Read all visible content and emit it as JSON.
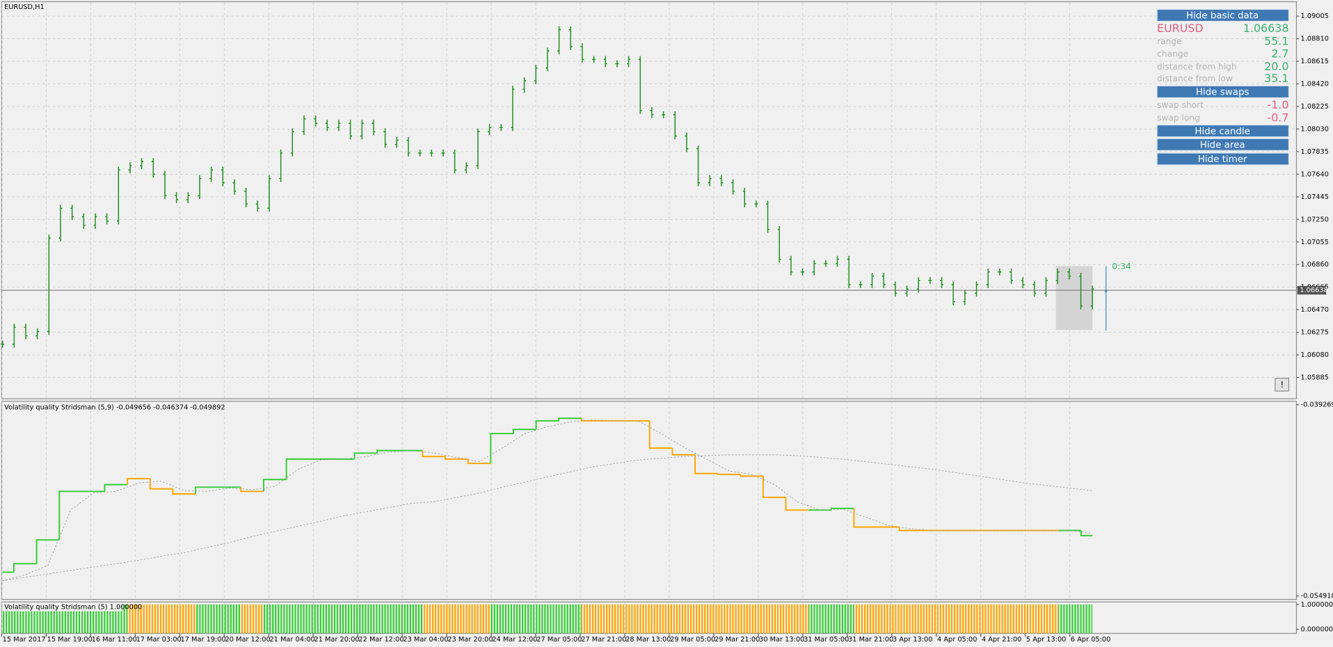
{
  "chart_data": [
    {
      "type": "ohlc",
      "title": "EURUSD,H1",
      "color": "#1e8c1e",
      "grid": true,
      "ylim": [
        1.05694,
        1.09122
      ],
      "yticks": [
        1.05885,
        {
          "value": 1.0608,
          "label": "1.06080"
        },
        1.06275,
        {
          "value": 1.0647,
          "label": "1.06470"
        },
        1.06665,
        {
          "value": 1.0686,
          "label": "1.06860"
        },
        1.07055,
        {
          "value": 1.0725,
          "label": "1.07250"
        },
        1.07445,
        {
          "value": 1.0764,
          "label": "1.07640"
        },
        1.07835,
        {
          "value": 1.0803,
          "label": "1.08030"
        },
        1.08225,
        {
          "value": 1.0842,
          "label": "1.08420"
        },
        1.08615,
        {
          "value": 1.0881,
          "label": "1.08810"
        },
        1.09005
      ],
      "time_labels": [
        "15 Mar 2017",
        "15 Mar 19:00",
        "16 Mar 11:00",
        "17 Mar 03:00",
        "17 Mar 19:00",
        "20 Mar 12:00",
        "21 Mar 04:00",
        "21 Mar 20:00",
        "22 Mar 12:00",
        "23 Mar 04:00",
        "23 Mar 20:00",
        "24 Mar 12:00",
        "27 Mar 05:00",
        "27 Mar 21:00",
        "28 Mar 13:00",
        "29 Mar 05:00",
        "29 Mar 21:00",
        "30 Mar 13:00",
        "31 Mar 05:00",
        "31 Mar 21:00",
        "3 Apr 13:00",
        "4 Apr 05:00",
        "4 Apr 21:00",
        "5 Apr 13:00",
        "6 Apr 05:00"
      ],
      "values": [
        1.06172,
        1.06319,
        1.06245,
        1.06282,
        1.07089,
        1.07346,
        1.07273,
        1.07199,
        1.07273,
        1.07236,
        1.07676,
        1.07713,
        1.0775,
        1.0764,
        1.07456,
        1.0742,
        1.07456,
        1.07603,
        1.07676,
        1.07566,
        1.07493,
        1.07383,
        1.07346,
        1.07603,
        1.07823,
        1.08007,
        1.08117,
        1.0808,
        1.08043,
        1.0808,
        1.0797,
        1.0808,
        1.08007,
        1.07897,
        1.07933,
        1.07823,
        1.07823,
        1.07823,
        1.07823,
        1.07676,
        1.07713,
        1.08007,
        1.08043,
        1.08043,
        1.08374,
        1.08447,
        1.08557,
        1.08704,
        1.08888,
        1.08741,
        1.08631,
        1.08631,
        1.08594,
        1.08594,
        1.08631,
        1.0819,
        1.08154,
        1.08154,
        1.0797,
        1.0786,
        1.07566,
        1.07603,
        1.07566,
        1.07493,
        1.07383,
        1.07383,
        1.07163,
        1.06906,
        1.06796,
        1.06796,
        1.06869,
        1.06869,
        1.06906,
        1.06686,
        1.06686,
        1.06759,
        1.06686,
        1.06612,
        1.06649,
        1.06722,
        1.06722,
        1.06686,
        1.06539,
        1.06612,
        1.06686,
        1.06796,
        1.06796,
        1.06722,
        1.06686,
        1.06612,
        1.06722,
        1.06796,
        1.06759,
        1.06502,
        1.06649
      ],
      "current_price": {
        "value": 1.06638,
        "label": "1.06638"
      },
      "timer": "0:34"
    },
    {
      "type": "line",
      "title": "Volatility quality Stridsman (5,9) -0.049656 -0.046374 -0.049892",
      "ylim": [
        -0.055196,
        -0.038991
      ],
      "yticks": [
        -0.039269,
        -0.054918
      ],
      "series": [
        {
          "color": "#ffa500",
          "colors": [
            "#32cd32",
            "#32cd32",
            "#32cd32",
            "#32cd32",
            "#32cd32",
            "#32cd32",
            "#ffa500",
            "#ffa500",
            "#ffa500",
            "#32cd32",
            "#32cd32",
            "#ffa500",
            "#32cd32",
            "#32cd32",
            "#32cd32",
            "#32cd32",
            "#32cd32",
            "#32cd32",
            "#32cd32",
            "#ffa500",
            "#ffa500",
            "#ffa500",
            "#32cd32",
            "#32cd32",
            "#32cd32",
            "#32cd32",
            "#ffa500",
            "#ffa500",
            "#ffa500",
            "#ffa500",
            "#ffa500",
            "#ffa500",
            "#ffa500",
            "#ffa500",
            "#ffa500",
            "#ffa500",
            "#32cd32",
            "#32cd32",
            "#ffa500",
            "#ffa500",
            "#ffa500",
            "#ffa500",
            "#ffa500",
            "#ffa500",
            "#ffa500",
            "#ffa500",
            "#ffa500",
            "#32cd32",
            "#32cd32"
          ],
          "values": [
            -0.05297,
            -0.05228,
            -0.05033,
            -0.04636,
            -0.04636,
            -0.04581,
            -0.04532,
            -0.04615,
            -0.04657,
            -0.04602,
            -0.04602,
            -0.04636,
            -0.04539,
            -0.04372,
            -0.04372,
            -0.04372,
            -0.04323,
            -0.04302,
            -0.04302,
            -0.04351,
            -0.04372,
            -0.04407,
            -0.04163,
            -0.04129,
            -0.04059,
            -0.04038,
            -0.04059,
            -0.04059,
            -0.04059,
            -0.04282,
            -0.04337,
            -0.0449,
            -0.04497,
            -0.04511,
            -0.04685,
            -0.04789,
            -0.04789,
            -0.04775,
            -0.04928,
            -0.04928,
            -0.04956,
            -0.04956,
            -0.04956,
            -0.04956,
            -0.04956,
            -0.04956,
            -0.04956,
            -0.04956,
            -0.04998
          ]
        },
        {
          "color": "#9a9a9a",
          "dashed": true,
          "values": [
            -0.05367,
            -0.05318,
            -0.05241,
            -0.04789,
            -0.0465,
            -0.04636,
            -0.04567,
            -0.04553,
            -0.04629,
            -0.04636,
            -0.04609,
            -0.04622,
            -0.04595,
            -0.04456,
            -0.04379,
            -0.04372,
            -0.04351,
            -0.04316,
            -0.04302,
            -0.04323,
            -0.04358,
            -0.04393,
            -0.04282,
            -0.04163,
            -0.04108,
            -0.04066,
            -0.04052,
            -0.04059,
            -0.04059,
            -0.04163,
            -0.04275,
            -0.04372,
            -0.04469,
            -0.04497,
            -0.04581,
            -0.0472,
            -0.04789,
            -0.04782,
            -0.04845,
            -0.04915,
            -0.04942,
            -0.04956,
            -0.04956,
            -0.04956,
            -0.04956,
            -0.04956,
            -0.04956,
            -0.04956,
            -0.04977
          ]
        },
        {
          "color": "#9a9a9a",
          "dashed": true,
          "values": [
            -0.05367,
            -0.05339,
            -0.05311,
            -0.05283,
            -0.05255,
            -0.05228,
            -0.052,
            -0.05165,
            -0.05137,
            -0.05095,
            -0.05054,
            -0.05005,
            -0.04963,
            -0.04922,
            -0.0488,
            -0.04838,
            -0.04803,
            -0.04769,
            -0.04734,
            -0.0472,
            -0.04685,
            -0.0465,
            -0.04602,
            -0.0456,
            -0.04518,
            -0.04476,
            -0.04435,
            -0.04407,
            -0.04379,
            -0.04365,
            -0.04351,
            -0.04344,
            -0.04337,
            -0.04337,
            -0.04337,
            -0.04344,
            -0.04358,
            -0.04372,
            -0.04393,
            -0.04414,
            -0.04435,
            -0.04456,
            -0.04483,
            -0.04511,
            -0.04539,
            -0.04567,
            -0.04588,
            -0.04609,
            -0.04629
          ]
        }
      ]
    },
    {
      "type": "histogram",
      "title": "Volatility quality Stridsman (5) 1.000000",
      "ylim": [
        -0.17,
        1.1
      ],
      "yticks": [
        {
          "value": 1,
          "label": "1.000000"
        },
        {
          "value": 0,
          "label": "0.000000"
        }
      ],
      "values": [
        1,
        1,
        1,
        1,
        1,
        1,
        1,
        1,
        1,
        1,
        1,
        1,
        1,
        1,
        1,
        1,
        1,
        1,
        1,
        1,
        1,
        1,
        1,
        1,
        1,
        1,
        1,
        1,
        1,
        1,
        1,
        1,
        1,
        1,
        1,
        1,
        1,
        1,
        1,
        1,
        1,
        1,
        1,
        1,
        1,
        1,
        1,
        1,
        1
      ]
    }
  ],
  "panel": {
    "buttons": [
      "Hide basic data",
      "Hide swaps",
      "Hide candle",
      "Hide area",
      "Hide timer"
    ],
    "symbol": "EURUSD",
    "price": "1.06638",
    "rows": [
      [
        "range",
        "55.1"
      ],
      [
        "change",
        "2.7"
      ],
      [
        "distance from high",
        "20.0"
      ],
      [
        "distance from low",
        "35.1"
      ]
    ],
    "swaps": [
      [
        "swap short",
        "-1.0"
      ],
      [
        "swap long",
        "-0.7"
      ]
    ],
    "alert": "!"
  }
}
